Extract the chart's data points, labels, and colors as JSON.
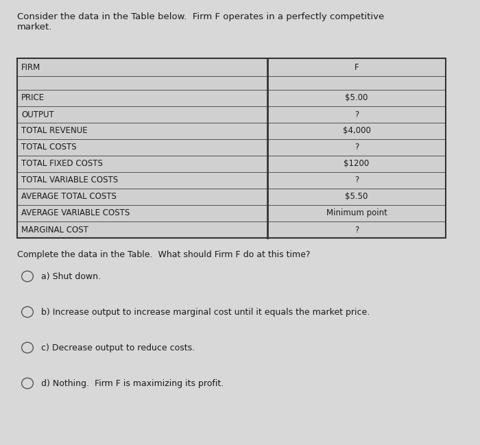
{
  "header_text": "Consider the data in the Table below.  Firm F operates in a perfectly competitive\nmarket.",
  "table_header_col1": "FIRM",
  "table_header_col2": "F",
  "table_rows": [
    [
      "PRICE",
      "$5.00"
    ],
    [
      "OUTPUT",
      "?"
    ],
    [
      "TOTAL REVENUE",
      "$4,000"
    ],
    [
      "TOTAL COSTS",
      "?"
    ],
    [
      "TOTAL FIXED COSTS",
      "$1200"
    ],
    [
      "TOTAL VARIABLE COSTS",
      "?"
    ],
    [
      "AVERAGE TOTAL COSTS",
      "$5.50"
    ],
    [
      "AVERAGE VARIABLE COSTS",
      "Minimum point"
    ],
    [
      "MARGINAL COST",
      "?"
    ]
  ],
  "question_text": "Complete the data in the Table.  What should Firm F do at this time?",
  "options": [
    "a) Shut down.",
    "b) Increase output to increase marginal cost until it equals the market price.",
    "c) Decrease output to reduce costs.",
    "d) Nothing.  Firm F is maximizing its profit."
  ],
  "bg_color": "#d8d8d8",
  "table_cell_color": "#d0d0d0",
  "table_border_color": "#555555",
  "text_color": "#1a1a1a",
  "font_size_header": 9.5,
  "font_size_table": 8.5,
  "font_size_question": 9.0,
  "font_size_options": 9.0,
  "fig_width": 7.0,
  "fig_height": 6.49,
  "dpi": 100
}
